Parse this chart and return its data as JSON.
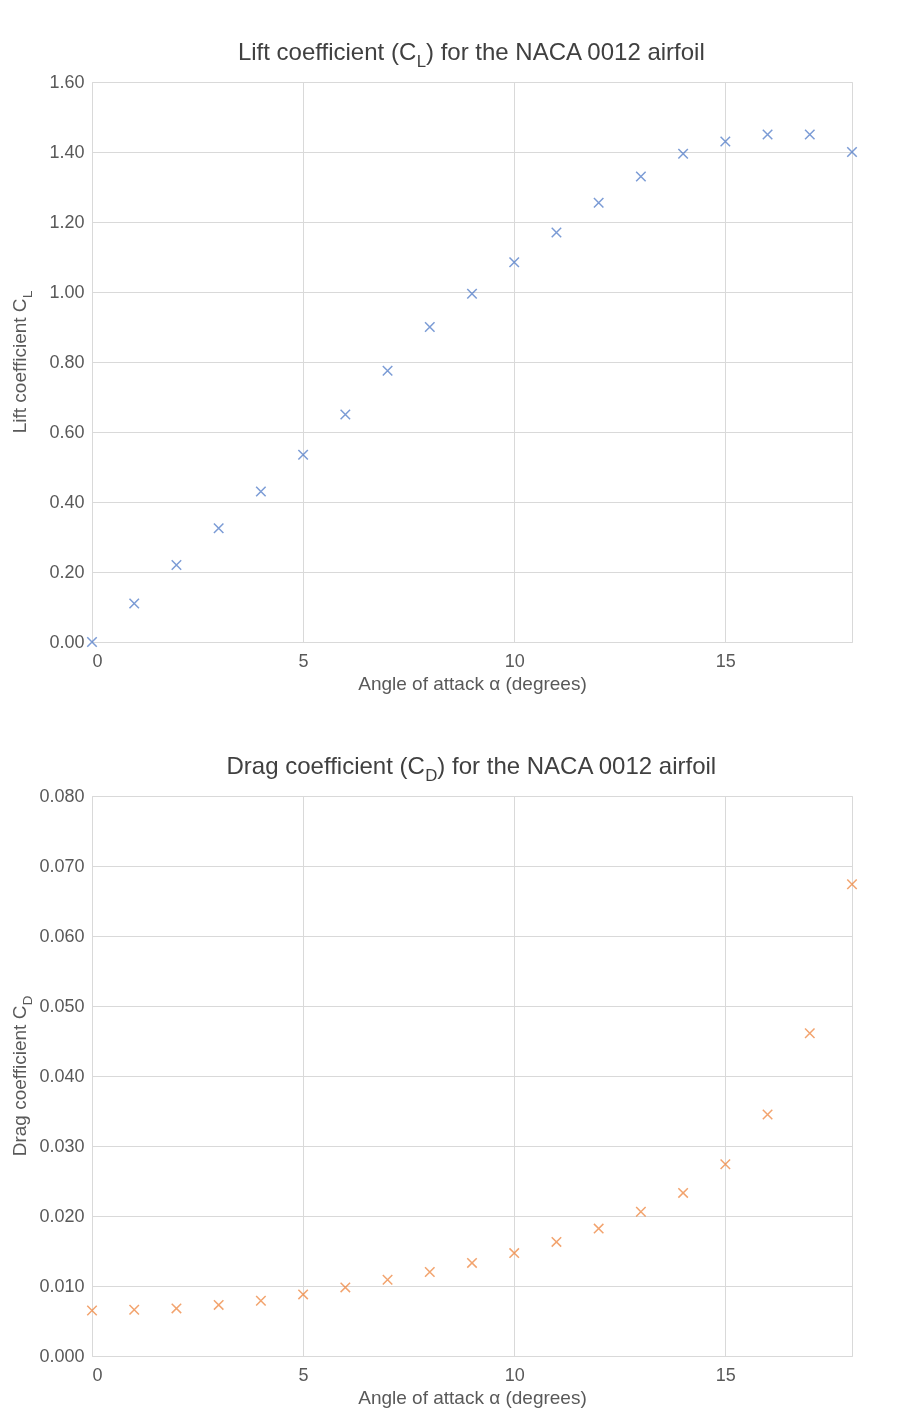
{
  "chart_data": [
    {
      "type": "scatter",
      "title": "Lift coefficient (C$_{L}$) for the NACA 0012 airfoil",
      "xlabel": "Angle of attack α (degrees)",
      "ylabel": "Lift coefficient C$_{L}$",
      "x": [
        0,
        1,
        2,
        3,
        4,
        5,
        6,
        7,
        8,
        9,
        10,
        11,
        12,
        13,
        14,
        15,
        16,
        17,
        18
      ],
      "series": [
        {
          "color": "#4472c4",
          "values": [
            0,
            0.11,
            0.22,
            0.325,
            0.43,
            0.535,
            0.65,
            0.775,
            0.9,
            0.995,
            1.085,
            1.17,
            1.255,
            1.33,
            1.395,
            1.43,
            1.45,
            1.45,
            1.4
          ]
        }
      ],
      "xlim": [
        0,
        18
      ],
      "xticks": [
        0,
        5,
        10,
        15
      ],
      "ylim": [
        0,
        1.6
      ],
      "yticks": [
        {
          "value": 0,
          "label": "0.00"
        },
        {
          "value": 0.2,
          "label": "0.20"
        },
        {
          "value": 0.4,
          "label": "0.40"
        },
        {
          "value": 0.6,
          "label": "0.60"
        },
        {
          "value": 0.8,
          "label": "0.80"
        },
        {
          "value": 1.0,
          "label": "1.00"
        },
        {
          "value": 1.2,
          "label": "1.20"
        },
        {
          "value": 1.4,
          "label": "1.40"
        },
        {
          "value": 1.6,
          "label": "1.60"
        }
      ],
      "grid": true,
      "marker": "cross"
    },
    {
      "type": "scatter",
      "title": "Drag coefficient (C$_{D}$) for the NACA 0012 airfoil",
      "xlabel": "Angle of attack α (degrees)",
      "ylabel": "Drag coefficient C$_{D}$",
      "x": [
        0,
        1,
        2,
        3,
        4,
        5,
        6,
        7,
        8,
        9,
        10,
        11,
        12,
        13,
        14,
        15,
        16,
        17,
        18
      ],
      "series": [
        {
          "color": "#ed7d31",
          "values": [
            0.0065,
            0.0066,
            0.0068,
            0.0073,
            0.0079,
            0.0088,
            0.0098,
            0.0109,
            0.012,
            0.0133,
            0.0147,
            0.0163,
            0.0182,
            0.0206,
            0.0233,
            0.0274,
            0.0345,
            0.0461,
            0.0674
          ]
        }
      ],
      "xlim": [
        0,
        18
      ],
      "xticks": [
        0,
        5,
        10,
        15
      ],
      "ylim": [
        0,
        0.08
      ],
      "yticks": [
        {
          "value": 0,
          "label": "0.000"
        },
        {
          "value": 0.01,
          "label": "0.010"
        },
        {
          "value": 0.02,
          "label": "0.020"
        },
        {
          "value": 0.03,
          "label": "0.030"
        },
        {
          "value": 0.04,
          "label": "0.040"
        },
        {
          "value": 0.05,
          "label": "0.050"
        },
        {
          "value": 0.06,
          "label": "0.060"
        },
        {
          "value": 0.07,
          "label": "0.070"
        },
        {
          "value": 0.08,
          "label": "0.080"
        }
      ],
      "grid": true,
      "marker": "cross"
    }
  ]
}
